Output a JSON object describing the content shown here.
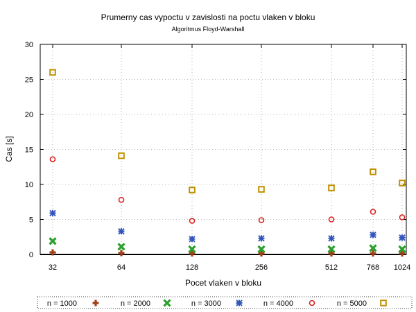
{
  "chart_data": {
    "type": "scatter",
    "title": "Prumerny cas vypoctu v zavislosti na poctu vlaken v bloku",
    "subtitle": "Algoritmus Floyd-Warshall",
    "xlabel": "Pocet vlaken v bloku",
    "ylabel": "Cas [s]",
    "categories": [
      "32",
      "64",
      "128",
      "256",
      "512",
      "768",
      "1024"
    ],
    "ylim": [
      0,
      30
    ],
    "yticks": [
      "0",
      "5",
      "10",
      "15",
      "20",
      "25",
      "30"
    ],
    "grid": true,
    "legend_position": "bottom",
    "series": [
      {
        "name": "n = 1000",
        "marker": "plus",
        "color": "#a0401a",
        "values": [
          0.3,
          0.2,
          0.15,
          0.15,
          0.15,
          0.15,
          0.15
        ]
      },
      {
        "name": "n = 2000",
        "marker": "cross",
        "color": "#2ca02c",
        "values": [
          1.9,
          1.1,
          0.75,
          0.75,
          0.75,
          0.9,
          0.75
        ]
      },
      {
        "name": "n = 3000",
        "marker": "star",
        "color": "#3355bb",
        "values": [
          5.9,
          3.3,
          2.2,
          2.3,
          2.3,
          2.8,
          2.4
        ]
      },
      {
        "name": "n = 4000",
        "marker": "circle",
        "color": "#dd2222",
        "values": [
          13.6,
          7.8,
          4.8,
          4.9,
          5.0,
          6.1,
          5.3
        ]
      },
      {
        "name": "n = 5000",
        "marker": "square",
        "color": "#c09000",
        "values": [
          26.0,
          14.1,
          9.2,
          9.3,
          9.5,
          11.8,
          10.2
        ]
      }
    ]
  }
}
